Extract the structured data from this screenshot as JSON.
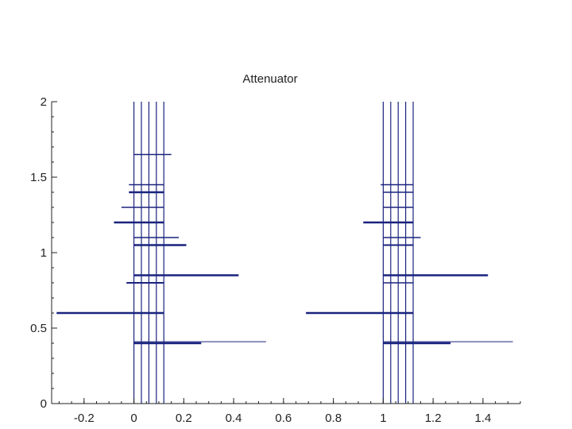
{
  "chart_data": {
    "type": "line",
    "title": "Attenuator",
    "xlabel": "",
    "ylabel": "",
    "xlim": [
      -0.33,
      1.55
    ],
    "ylim": [
      0,
      2
    ],
    "xticks": [
      {
        "v": -0.2,
        "label": "-0.2"
      },
      {
        "v": 0,
        "label": "0"
      },
      {
        "v": 0.2,
        "label": "0.2"
      },
      {
        "v": 0.4,
        "label": "0.4"
      },
      {
        "v": 0.6,
        "label": "0.6"
      },
      {
        "v": 0.8,
        "label": "0.8"
      },
      {
        "v": 1,
        "label": "1"
      },
      {
        "v": 1.2,
        "label": "1.2"
      },
      {
        "v": 1.4,
        "label": "1.4"
      }
    ],
    "yticks": [
      {
        "v": 0,
        "label": "0"
      },
      {
        "v": 0.5,
        "label": "0.5"
      },
      {
        "v": 1,
        "label": "1"
      },
      {
        "v": 1.5,
        "label": "1.5"
      },
      {
        "v": 2,
        "label": "2"
      }
    ],
    "grid": false,
    "legend": "none",
    "colors": {
      "series": "#1a237e",
      "axis": "#222222"
    },
    "groups": [
      {
        "verticals": [
          0,
          0.03,
          0.06,
          0.09,
          0.12
        ],
        "segments": [
          {
            "y": 0.6,
            "x1": -0.31,
            "x2": 0.12,
            "w": 2.5
          },
          {
            "y": 0.41,
            "x1": 0,
            "x2": 0.53,
            "w": 1
          },
          {
            "y": 0.4,
            "x1": 0,
            "x2": 0.27,
            "w": 2.5
          },
          {
            "y": 0.85,
            "x1": 0,
            "x2": 0.42,
            "w": 2.5
          },
          {
            "y": 0.8,
            "x1": -0.03,
            "x2": 0.12,
            "w": 2
          },
          {
            "y": 1.05,
            "x1": 0,
            "x2": 0.21,
            "w": 2.5
          },
          {
            "y": 1.1,
            "x1": 0,
            "x2": 0.18,
            "w": 1.5
          },
          {
            "y": 1.2,
            "x1": -0.08,
            "x2": 0.12,
            "w": 2.5
          },
          {
            "y": 1.3,
            "x1": -0.05,
            "x2": 0.12,
            "w": 1.5
          },
          {
            "y": 1.4,
            "x1": -0.02,
            "x2": 0.12,
            "w": 2.5
          },
          {
            "y": 1.45,
            "x1": -0.02,
            "x2": 0.12,
            "w": 1.5
          },
          {
            "y": 1.65,
            "x1": 0,
            "x2": 0.15,
            "w": 1.5
          }
        ]
      },
      {
        "verticals": [
          1,
          1.03,
          1.06,
          1.09,
          1.12
        ],
        "segments": [
          {
            "y": 0.6,
            "x1": 0.69,
            "x2": 1.12,
            "w": 2.5
          },
          {
            "y": 0.41,
            "x1": 1,
            "x2": 1.52,
            "w": 1
          },
          {
            "y": 0.4,
            "x1": 1,
            "x2": 1.27,
            "w": 2.5
          },
          {
            "y": 0.85,
            "x1": 1,
            "x2": 1.42,
            "w": 2.5
          },
          {
            "y": 0.8,
            "x1": 1,
            "x2": 1.12,
            "w": 1.5
          },
          {
            "y": 1.05,
            "x1": 1,
            "x2": 1.12,
            "w": 2
          },
          {
            "y": 1.1,
            "x1": 1,
            "x2": 1.15,
            "w": 1.5
          },
          {
            "y": 1.2,
            "x1": 0.92,
            "x2": 1.12,
            "w": 2.5
          },
          {
            "y": 1.3,
            "x1": 1,
            "x2": 1.12,
            "w": 1.5
          },
          {
            "y": 1.4,
            "x1": 1,
            "x2": 1.12,
            "w": 1.5
          },
          {
            "y": 1.45,
            "x1": 0.99,
            "x2": 1.12,
            "w": 1.5
          }
        ]
      }
    ]
  }
}
